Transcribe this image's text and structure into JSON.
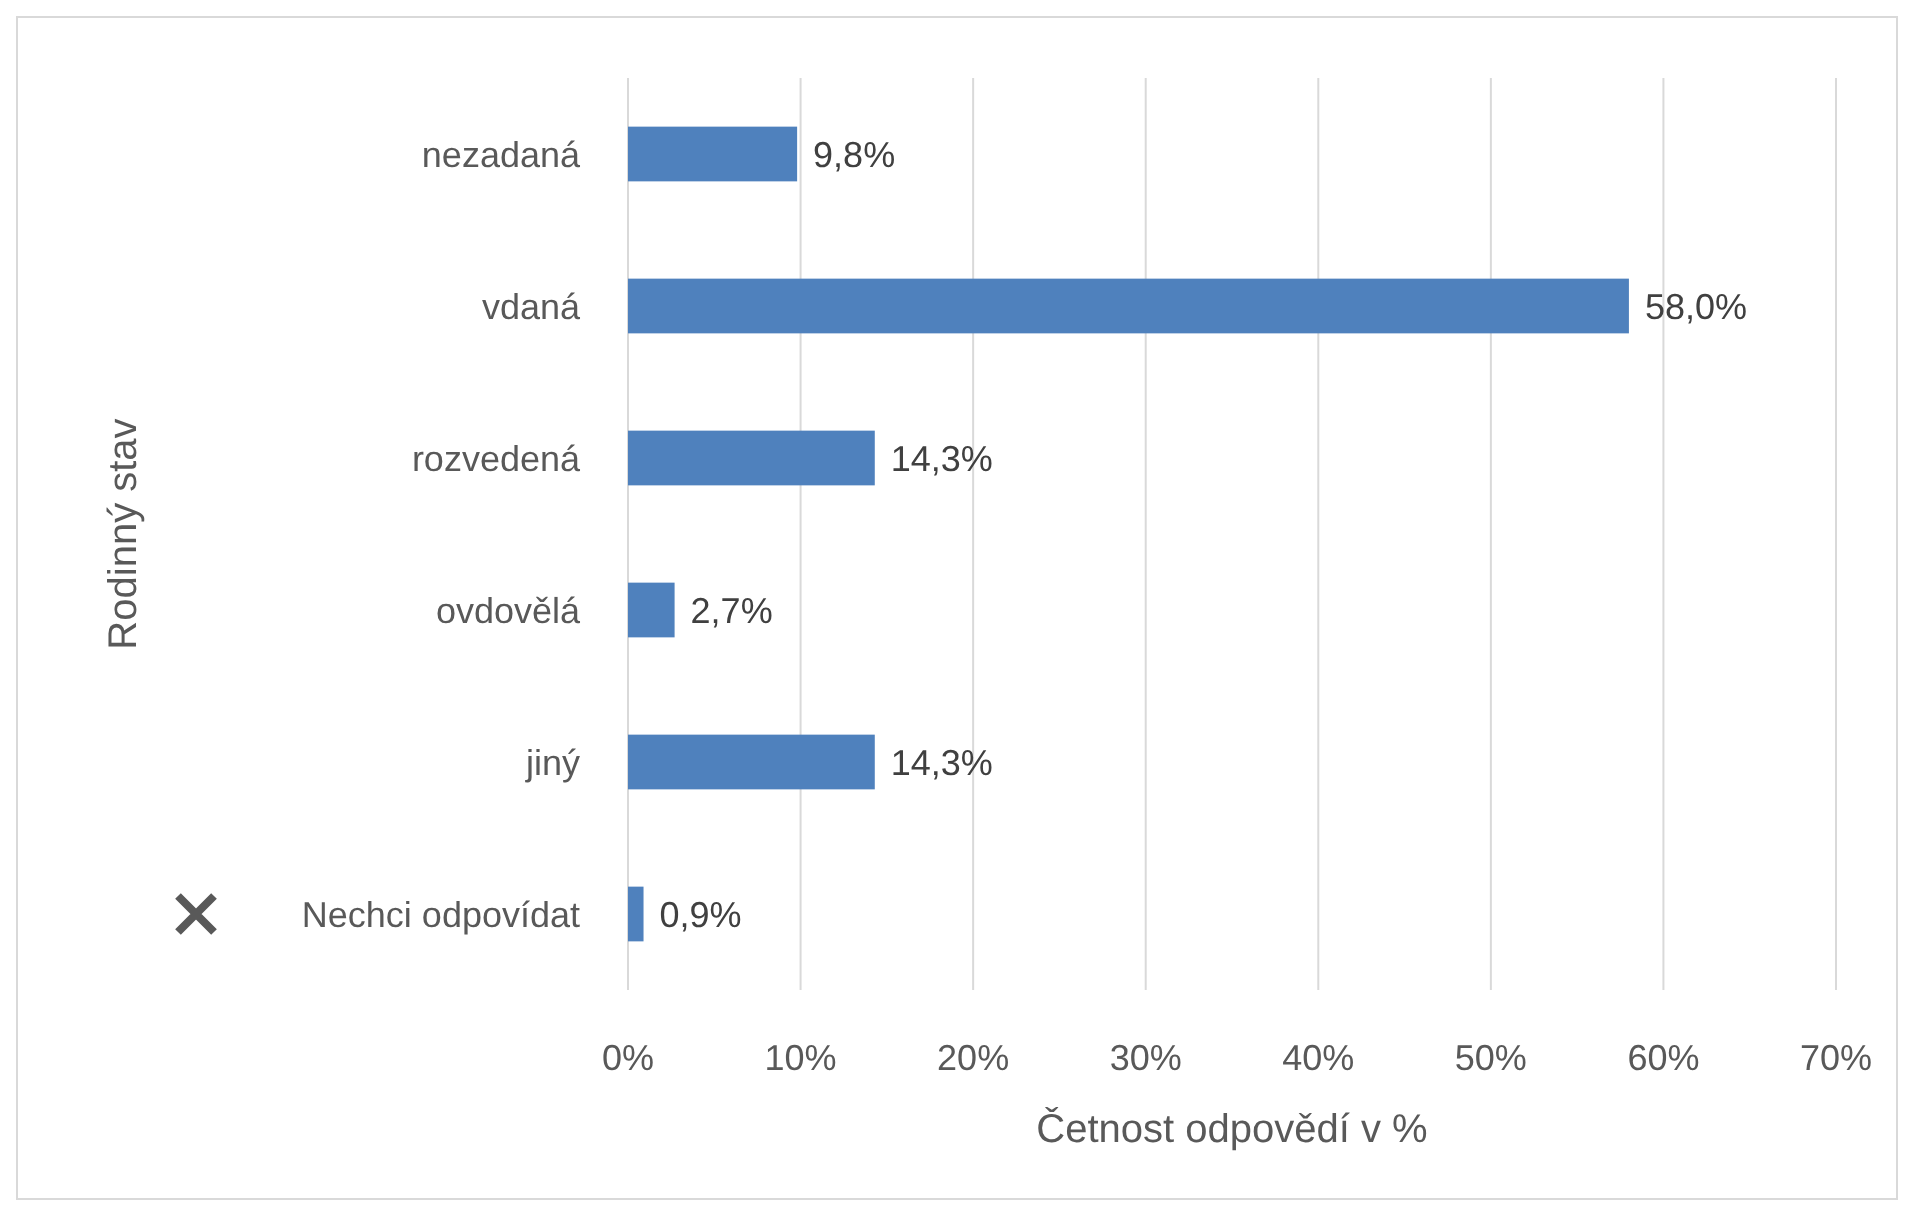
{
  "chart_data": {
    "type": "bar",
    "orientation": "horizontal",
    "xlabel": "Četnost odpovědí v %",
    "ylabel": "Rodinný stav",
    "categories": [
      "nezadaná",
      "vdaná",
      "rozvedená",
      "ovdovělá",
      "jiný",
      "Nechci odpovídat"
    ],
    "values": [
      9.8,
      58.0,
      14.3,
      2.7,
      14.3,
      0.9
    ],
    "color": "#4f81bd",
    "value_labels": [
      "9,8%",
      "58,0%",
      "14,3%",
      "2,7%",
      "14,3%",
      "0,9%"
    ],
    "xlim": [
      0,
      70
    ],
    "xticks": [
      {
        "value": 0,
        "label": "0%"
      },
      {
        "value": 10,
        "label": "10%"
      },
      {
        "value": 20,
        "label": "20%"
      },
      {
        "value": 30,
        "label": "30%"
      },
      {
        "value": 40,
        "label": "40%"
      },
      {
        "value": 50,
        "label": "50%"
      },
      {
        "value": 60,
        "label": "60%"
      },
      {
        "value": 70,
        "label": "70%"
      }
    ],
    "grid": "x"
  }
}
